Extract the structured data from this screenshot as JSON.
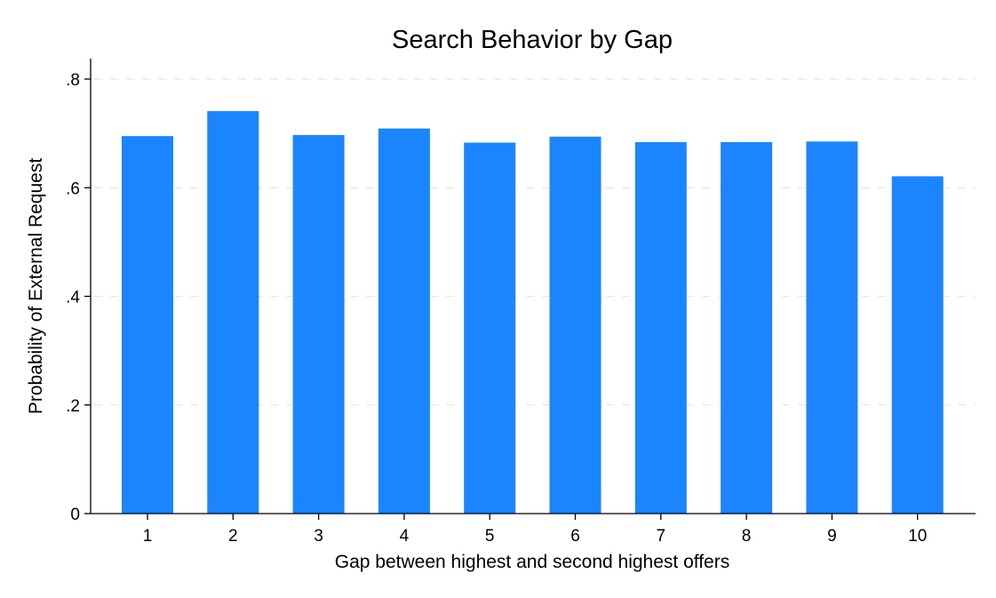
{
  "chart_data": {
    "type": "bar",
    "title": "Search Behavior by Gap",
    "xlabel": "Gap between highest and second highest offers",
    "ylabel": "Probability of External Request",
    "categories": [
      "1",
      "2",
      "3",
      "4",
      "5",
      "6",
      "7",
      "8",
      "9",
      "10"
    ],
    "values": [
      0.695,
      0.741,
      0.697,
      0.709,
      0.683,
      0.694,
      0.684,
      0.684,
      0.685,
      0.621
    ],
    "ylim": [
      0,
      0.8
    ],
    "yticks": [
      0,
      0.2,
      0.4,
      0.6,
      0.8
    ],
    "ytick_labels": [
      "0",
      ".2",
      ".4",
      ".6",
      ".8"
    ],
    "grid": true,
    "legend": "none",
    "bar_color": "#1a85ff"
  }
}
